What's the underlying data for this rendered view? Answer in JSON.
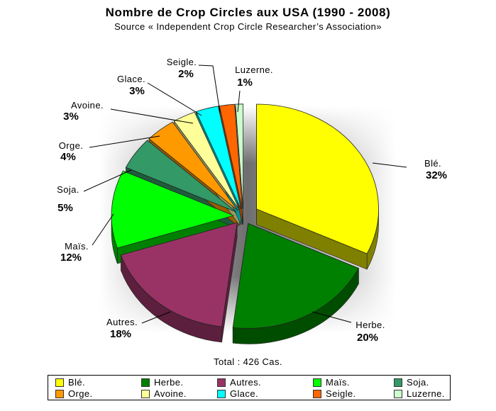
{
  "chart_data": {
    "type": "pie",
    "title": "Nombre de Crop Circles aux USA (1990 - 2008)",
    "subtitle": "Source « Independent Crop Circle Researcher’s Association»",
    "total_label": "Total : 426 Cas.",
    "slices": [
      {
        "label": "Blé.",
        "pct_label": "32%",
        "value": 32,
        "color": "#ffff00",
        "side": "#808000"
      },
      {
        "label": "Herbe.",
        "pct_label": "20%",
        "value": 20,
        "color": "#008000",
        "side": "#004d00"
      },
      {
        "label": "Autres.",
        "pct_label": "18%",
        "value": 18,
        "color": "#993366",
        "side": "#5c1f3d"
      },
      {
        "label": "Maïs.",
        "pct_label": "12%",
        "value": 12,
        "color": "#00ff00",
        "side": "#008000"
      },
      {
        "label": "Soja.",
        "pct_label": "5%",
        "value": 5,
        "color": "#339966",
        "side": "#1f5c3d"
      },
      {
        "label": "Orge.",
        "pct_label": "4%",
        "value": 4,
        "color": "#ff9900",
        "side": "#995c00"
      },
      {
        "label": "Avoine.",
        "pct_label": "3%",
        "value": 3,
        "color": "#ffff99",
        "side": "#99995c"
      },
      {
        "label": "Glace.",
        "pct_label": "3%",
        "value": 3,
        "color": "#00ffff",
        "side": "#009999"
      },
      {
        "label": "Seigle.",
        "pct_label": "2%",
        "value": 2,
        "color": "#ff6600",
        "side": "#993d00"
      },
      {
        "label": "Luzerne.",
        "pct_label": "1%",
        "value": 1,
        "color": "#ccffcc",
        "side": "#7a997a"
      }
    ],
    "legend_placement": "bottom",
    "exploded": true,
    "style_3d": true
  }
}
